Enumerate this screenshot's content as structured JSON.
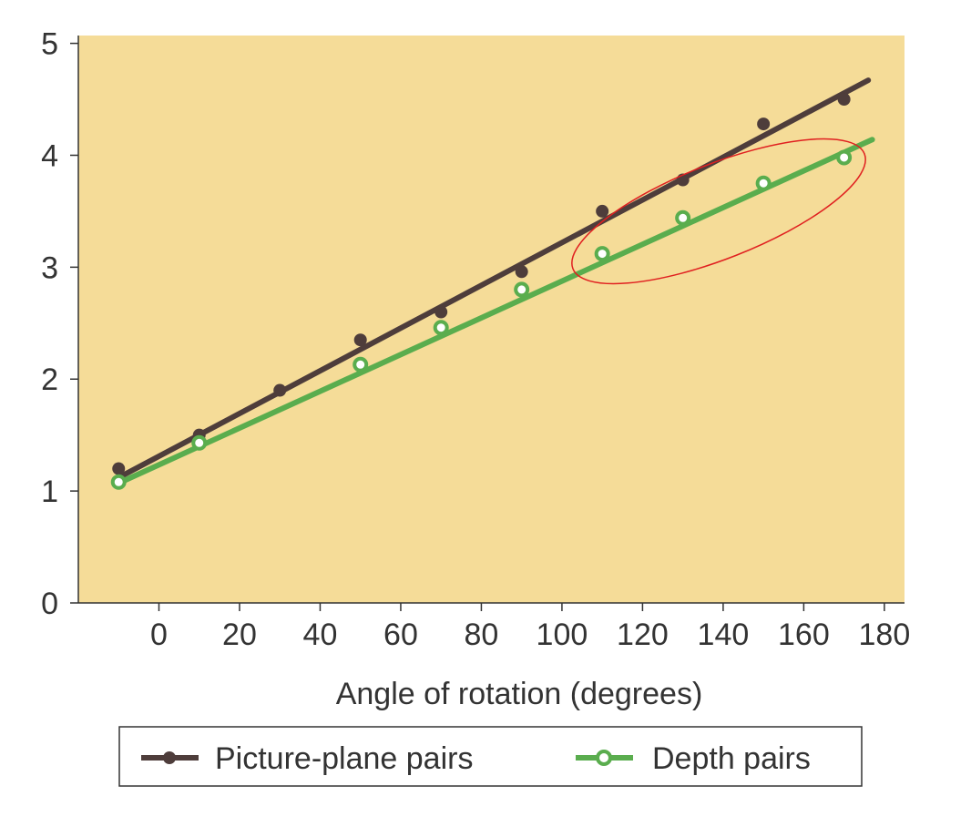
{
  "chart_data": {
    "type": "line",
    "title": "",
    "xlabel": "Angle of rotation (degrees)",
    "ylabel": "",
    "xlim": [
      -20,
      185
    ],
    "ylim": [
      0,
      5.07
    ],
    "x_ticks": [
      0,
      20,
      40,
      60,
      80,
      100,
      120,
      140,
      160,
      180
    ],
    "y_ticks": [
      0,
      1,
      2,
      3,
      4,
      5
    ],
    "grid": false,
    "legend_placement": "bottom",
    "background_color": "#f5dc98",
    "series": [
      {
        "name": "Picture-plane pairs",
        "color": "#4e3d3b",
        "marker": "filled-circle",
        "x": [
          -10,
          10,
          30,
          50,
          70,
          90,
          110,
          130,
          150,
          170
        ],
        "y": [
          1.2,
          1.5,
          1.9,
          2.35,
          2.6,
          2.96,
          3.5,
          3.78,
          4.28,
          4.5
        ],
        "fit_line": {
          "x": [
            -10,
            176
          ],
          "y": [
            1.12,
            4.67
          ]
        }
      },
      {
        "name": "Depth pairs",
        "color": "#5aad4e",
        "marker": "open-circle",
        "x": [
          -10,
          10,
          50,
          70,
          90,
          110,
          130,
          150,
          170
        ],
        "y": [
          1.08,
          1.43,
          2.13,
          2.46,
          2.8,
          3.12,
          3.44,
          3.75,
          3.98
        ],
        "fit_line": {
          "x": [
            -10,
            177
          ],
          "y": [
            1.07,
            4.14
          ]
        }
      }
    ],
    "annotations": [
      {
        "type": "ellipse",
        "color": "#e02020",
        "covers_x_range": [
          100,
          175
        ],
        "series": "Depth pairs"
      }
    ]
  }
}
